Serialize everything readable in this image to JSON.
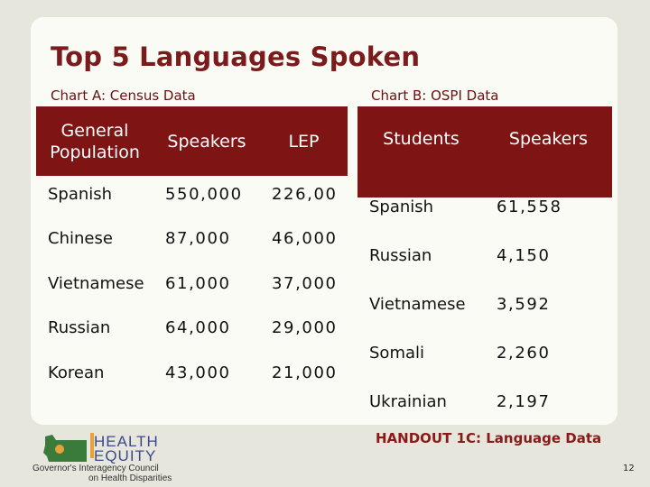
{
  "title": "Top 5 Languages Spoken",
  "chart_a": {
    "label": "Chart A: Census Data",
    "headers": [
      "General Population",
      "Speakers",
      "LEP"
    ],
    "rows": [
      [
        "Spanish",
        "550,000",
        "226,00"
      ],
      [
        "Chinese",
        "87,000",
        "46,000"
      ],
      [
        "Vietnamese",
        "61,000",
        "37,000"
      ],
      [
        "Russian",
        "64,000",
        "29,000"
      ],
      [
        "Korean",
        "43,000",
        "21,000"
      ]
    ]
  },
  "chart_b": {
    "label": "Chart B: OSPI Data",
    "headers": [
      "Students",
      "Speakers"
    ],
    "rows": [
      [
        "Spanish",
        "61,558"
      ],
      [
        "Russian",
        "4,150"
      ],
      [
        "Vietnamese",
        "3,592"
      ],
      [
        "Somali",
        "2,260"
      ],
      [
        "Ukrainian",
        "2,197"
      ]
    ]
  },
  "footer": {
    "handout": "HANDOUT 1C: Language Data",
    "page_number": "12"
  },
  "logo": {
    "line1": "HEALTH",
    "line2": "EQUITY",
    "line3": "Governor's Interagency Council",
    "line4": "on Health Disparities",
    "colors": {
      "state_shape": "#3a7a3a",
      "text": "#3b4a8a",
      "sun": "#e8a13a"
    }
  },
  "colors": {
    "header_bg": "#7e1414",
    "title": "#7b1b1b",
    "background": "#e6e6dc",
    "card": "#fbfbf6"
  }
}
